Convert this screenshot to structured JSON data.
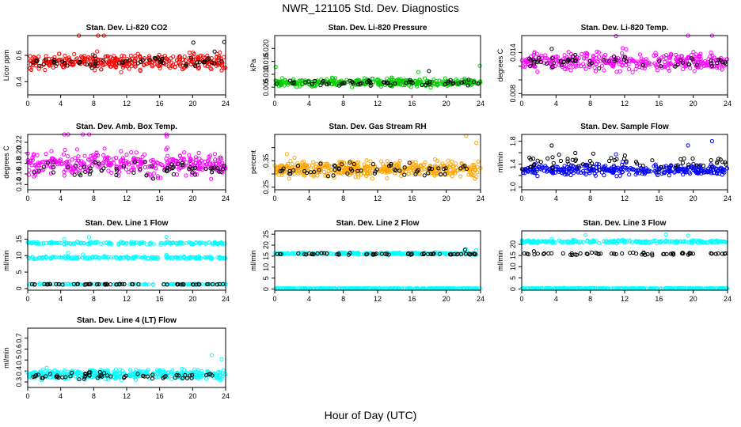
{
  "figure": {
    "title": "NWR_121105  Std. Dev. Diagnostics",
    "xlabel": "Hour of Day (UTC)"
  },
  "chart_data": [
    {
      "type": "scatter",
      "title": "Stan. Dev. Li-820 CO2",
      "ylabel": "Licor ppm",
      "xlim": [
        0,
        24
      ],
      "x_ticks": [
        0,
        4,
        8,
        12,
        16,
        20,
        24
      ],
      "y_ticks": [
        0.4,
        0.6
      ],
      "y_tick_labels": [
        "0.4",
        "0.6"
      ],
      "ylim": [
        0.3,
        0.75
      ],
      "series": [
        {
          "color": "#ff0000",
          "center": 0.55,
          "spread": 0.05,
          "n": 360
        },
        {
          "color": "#000000",
          "center": 0.55,
          "spread": 0.04,
          "n": 60
        }
      ]
    },
    {
      "type": "scatter",
      "title": "Stan. Dev. Li-820 Pressure",
      "ylabel": "kPa",
      "xlim": [
        0,
        24
      ],
      "x_ticks": [
        0,
        4,
        8,
        12,
        16,
        20,
        24
      ],
      "y_ticks": [
        0.005,
        0.01,
        0.015,
        0.02
      ],
      "y_tick_labels": [
        "0.005",
        "0.010",
        "0.015",
        "0.020"
      ],
      "ylim": [
        0.002,
        0.025
      ],
      "series": [
        {
          "color": "#00cc00",
          "center": 0.0068,
          "spread": 0.0012,
          "n": 360
        },
        {
          "color": "#000000",
          "center": 0.0068,
          "spread": 0.0009,
          "n": 60
        }
      ]
    },
    {
      "type": "scatter",
      "title": "Stan. Dev. Li-820 Temp.",
      "ylabel": "degrees C",
      "xlim": [
        0,
        24
      ],
      "x_ticks": [
        0,
        4,
        8,
        12,
        16,
        20,
        24
      ],
      "y_ticks": [
        0.008,
        0.01,
        0.012,
        0.014
      ],
      "y_tick_labels": [
        "0.008",
        "",
        "",
        "0.014"
      ],
      "ylim": [
        0.0078,
        0.0165
      ],
      "series": [
        {
          "color": "#ff00ff",
          "center": 0.0127,
          "spread": 0.0011,
          "n": 360
        },
        {
          "color": "#000000",
          "center": 0.0127,
          "spread": 0.0008,
          "n": 60
        }
      ]
    },
    {
      "type": "scatter",
      "title": "Stan. Dev. Amb. Box Temp.",
      "ylabel": "degrees C",
      "xlim": [
        0,
        24
      ],
      "x_ticks": [
        0,
        4,
        8,
        12,
        16,
        20,
        24
      ],
      "y_ticks": [
        0.14,
        0.16,
        0.18,
        0.2,
        0.22
      ],
      "y_tick_labels": [
        "0.14",
        "0.16",
        "0.18",
        "0.20",
        "0.22"
      ],
      "ylim": [
        0.13,
        0.235
      ],
      "series": [
        {
          "color": "#ff00ff",
          "center": 0.18,
          "spread": 0.018,
          "n": 360
        },
        {
          "color": "#000000",
          "center": 0.17,
          "spread": 0.013,
          "n": 60
        }
      ]
    },
    {
      "type": "scatter",
      "title": "Stan. Dev. Gas Stream RH",
      "ylabel": "percent",
      "xlim": [
        0,
        24
      ],
      "x_ticks": [
        0,
        4,
        8,
        12,
        16,
        20,
        24
      ],
      "y_ticks": [
        0.25,
        0.3,
        0.35,
        0.4
      ],
      "y_tick_labels": [
        "0.25",
        "",
        "0.35",
        ""
      ],
      "ylim": [
        0.24,
        0.45
      ],
      "series": [
        {
          "color": "#ffa500",
          "center": 0.32,
          "spread": 0.025,
          "n": 420
        },
        {
          "color": "#000000",
          "center": 0.32,
          "spread": 0.02,
          "n": 60
        }
      ]
    },
    {
      "type": "scatter",
      "title": "Stan. Dev. Sample Flow",
      "ylabel": "ml/min",
      "xlim": [
        0,
        24
      ],
      "x_ticks": [
        0,
        4,
        8,
        12,
        16,
        20,
        24
      ],
      "y_ticks": [
        1.0,
        1.2,
        1.4,
        1.6,
        1.8
      ],
      "y_tick_labels": [
        "1.0",
        "",
        "1.4",
        "",
        "1.8"
      ],
      "ylim": [
        0.95,
        1.92
      ],
      "series": [
        {
          "color": "#0000ff",
          "center": 1.3,
          "spread": 0.08,
          "n": 360
        },
        {
          "color": "#000000",
          "center": 1.45,
          "spread": 0.12,
          "n": 60
        }
      ]
    },
    {
      "type": "scatter",
      "title": "Stan. Dev. Line 1 Flow",
      "ylabel": "ml/min",
      "xlim": [
        0,
        24
      ],
      "x_ticks": [
        0,
        4,
        8,
        12,
        16,
        20,
        24
      ],
      "y_ticks": [
        0,
        5,
        10,
        15
      ],
      "y_tick_labels": [
        "0",
        "5",
        "10",
        "15"
      ],
      "ylim": [
        -0.5,
        17.5
      ],
      "series": [
        {
          "color": "#00ffff",
          "center": 13.8,
          "spread": 0.3,
          "n": 180
        },
        {
          "color": "#00ffff",
          "center": 9.4,
          "spread": 0.3,
          "n": 180
        },
        {
          "color": "#00ffff",
          "center": 1.3,
          "spread": 0.1,
          "n": 120
        },
        {
          "color": "#000000",
          "center": 1.3,
          "spread": 0.1,
          "n": 60
        }
      ]
    },
    {
      "type": "scatter",
      "title": "Stan. Dev. Line 2 Flow",
      "ylabel": "ml/min",
      "xlim": [
        0,
        24
      ],
      "x_ticks": [
        0,
        4,
        8,
        12,
        16,
        20,
        24
      ],
      "y_ticks": [
        0,
        5,
        10,
        15,
        20,
        25
      ],
      "y_tick_labels": [
        "0",
        "5",
        "10",
        "15",
        "20",
        "25"
      ],
      "ylim": [
        -0.5,
        26.5
      ],
      "series": [
        {
          "color": "#00ffff",
          "center": 16.2,
          "spread": 0.4,
          "n": 240
        },
        {
          "color": "#00ffff",
          "center": 0.3,
          "spread": 0.05,
          "n": 300
        },
        {
          "color": "#000000",
          "center": 16.0,
          "spread": 0.3,
          "n": 60
        }
      ]
    },
    {
      "type": "scatter",
      "title": "Stan. Dev. Line 3 Flow",
      "ylabel": "ml/min",
      "xlim": [
        0,
        24
      ],
      "x_ticks": [
        0,
        4,
        8,
        12,
        16,
        20,
        24
      ],
      "y_ticks": [
        0,
        5,
        10,
        15,
        20
      ],
      "y_tick_labels": [
        "0",
        "5",
        "10",
        "15",
        "20"
      ],
      "ylim": [
        -0.5,
        26
      ],
      "series": [
        {
          "color": "#00ffff",
          "center": 21.2,
          "spread": 0.5,
          "n": 240
        },
        {
          "color": "#00ffff",
          "center": 0.3,
          "spread": 0.05,
          "n": 300
        },
        {
          "color": "#000000",
          "center": 15.8,
          "spread": 0.5,
          "n": 60
        }
      ]
    },
    {
      "type": "scatter",
      "title": "Stan. Dev. Line 4 (LT) Flow",
      "ylabel": "ml/min",
      "xlim": [
        0,
        24
      ],
      "x_ticks": [
        0,
        4,
        8,
        12,
        16,
        20,
        24
      ],
      "y_ticks": [
        0.3,
        0.4,
        0.5,
        0.6,
        0.7
      ],
      "y_tick_labels": [
        "0.3",
        "0.4",
        "0.5",
        "0.6",
        "0.7"
      ],
      "ylim": [
        0.25,
        0.79
      ],
      "series": [
        {
          "color": "#00ffff",
          "center": 0.37,
          "spread": 0.035,
          "n": 400
        },
        {
          "color": "#000000",
          "center": 0.36,
          "spread": 0.025,
          "n": 60
        }
      ]
    }
  ]
}
